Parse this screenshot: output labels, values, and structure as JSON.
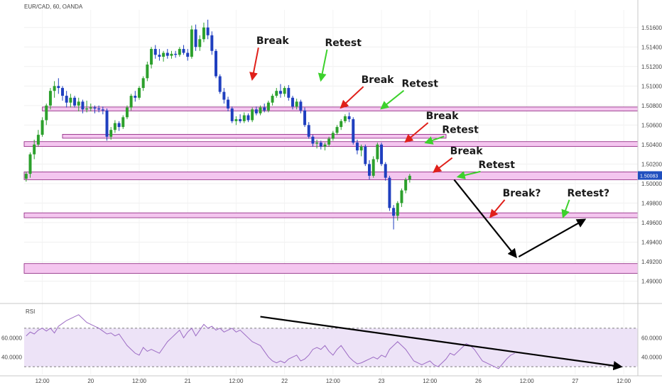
{
  "header": {
    "symbol_text": "EUR/CAD, 60, OANDA"
  },
  "colors": {
    "up": "#2ca02c",
    "down": "#1f3fbf",
    "zone_fill": "#f4c6ef",
    "zone_border": "#8a1f7c",
    "rsi_line": "#9c6bc4",
    "rsi_band": "#ede3f7",
    "current_price_bg": "#1f4fbf",
    "red_arrow": "#e0201a",
    "green_arrow": "#3cd12c",
    "projection": "#000000"
  },
  "chart_data": {
    "type": "candlestick",
    "symbol": "EUR/CAD",
    "timeframe": "60",
    "source": "OANDA",
    "current_price_label": "1.50083",
    "price_axis": {
      "range": [
        1.488,
        1.5178
      ],
      "tick_values": [
        1.49,
        1.492,
        1.494,
        1.496,
        1.498,
        1.5,
        1.502,
        1.504,
        1.506,
        1.508,
        1.51,
        1.512,
        1.514,
        1.516
      ],
      "tick_labels": [
        "1.49000",
        "1.49200",
        "1.49400",
        "1.49600",
        "1.49800",
        "1.50000",
        "1.50200",
        "1.50400",
        "1.50600",
        "1.50800",
        "1.51000",
        "1.51200",
        "1.51400",
        "1.51600"
      ]
    },
    "time_axis": {
      "tick_index": [
        4,
        16,
        28,
        40,
        52,
        64,
        76,
        88,
        100,
        112,
        124,
        136,
        148
      ],
      "labels": [
        "12:00",
        "20",
        "12:00",
        "21",
        "12:00",
        "22",
        "12:00",
        "23",
        "12:00",
        "26",
        "12:00",
        "27",
        "12:00"
      ],
      "total_bars": 152
    },
    "candles": [
      [
        1.5005,
        1.5012,
        1.5002,
        1.501
      ],
      [
        1.501,
        1.5032,
        1.5006,
        1.503
      ],
      [
        1.503,
        1.5045,
        1.5025,
        1.504
      ],
      [
        1.504,
        1.5055,
        1.5038,
        1.505
      ],
      [
        1.505,
        1.5068,
        1.5048,
        1.5065
      ],
      [
        1.5065,
        1.5082,
        1.506,
        1.508
      ],
      [
        1.508,
        1.5098,
        1.5076,
        1.5095
      ],
      [
        1.5095,
        1.5105,
        1.5088,
        1.51
      ],
      [
        1.51,
        1.5108,
        1.5092,
        1.5098
      ],
      [
        1.5098,
        1.51,
        1.5085,
        1.509
      ],
      [
        1.509,
        1.5095,
        1.5078,
        1.5083
      ],
      [
        1.5083,
        1.5092,
        1.5078,
        1.5088
      ],
      [
        1.5088,
        1.509,
        1.5078,
        1.508
      ],
      [
        1.508,
        1.5088,
        1.5074,
        1.5084
      ],
      [
        1.5084,
        1.5086,
        1.5072,
        1.5076
      ],
      [
        1.5076,
        1.5085,
        1.5073,
        1.5077
      ],
      [
        1.5077,
        1.5082,
        1.5074,
        1.5078
      ],
      [
        1.5078,
        1.508,
        1.5072,
        1.5077
      ],
      [
        1.5077,
        1.508,
        1.5073,
        1.5076
      ],
      [
        1.5076,
        1.5079,
        1.5071,
        1.5075
      ],
      [
        1.5075,
        1.5077,
        1.5044,
        1.5048
      ],
      [
        1.5048,
        1.5058,
        1.5045,
        1.5055
      ],
      [
        1.5055,
        1.5065,
        1.5052,
        1.5062
      ],
      [
        1.5062,
        1.5064,
        1.5054,
        1.5058
      ],
      [
        1.5058,
        1.507,
        1.5056,
        1.5068
      ],
      [
        1.5068,
        1.508,
        1.5066,
        1.5078
      ],
      [
        1.5078,
        1.5092,
        1.5075,
        1.509
      ],
      [
        1.509,
        1.5095,
        1.5084,
        1.5088
      ],
      [
        1.5088,
        1.51,
        1.5086,
        1.5098
      ],
      [
        1.5098,
        1.511,
        1.5095,
        1.5108
      ],
      [
        1.5108,
        1.5125,
        1.5105,
        1.5122
      ],
      [
        1.5122,
        1.514,
        1.5118,
        1.5138
      ],
      [
        1.5138,
        1.5142,
        1.5128,
        1.5132
      ],
      [
        1.5132,
        1.5138,
        1.5126,
        1.513
      ],
      [
        1.513,
        1.5136,
        1.5125,
        1.5134
      ],
      [
        1.5134,
        1.5138,
        1.5128,
        1.5131
      ],
      [
        1.5131,
        1.5136,
        1.5128,
        1.5133
      ],
      [
        1.5133,
        1.5136,
        1.5129,
        1.5132
      ],
      [
        1.5132,
        1.514,
        1.513,
        1.5138
      ],
      [
        1.5138,
        1.5142,
        1.5132,
        1.5134
      ],
      [
        1.5134,
        1.5138,
        1.5126,
        1.513
      ],
      [
        1.513,
        1.5162,
        1.5128,
        1.5158
      ],
      [
        1.5158,
        1.5163,
        1.5136,
        1.514
      ],
      [
        1.514,
        1.5152,
        1.5136,
        1.5148
      ],
      [
        1.5148,
        1.5165,
        1.5145,
        1.516
      ],
      [
        1.516,
        1.5168,
        1.5148,
        1.5152
      ],
      [
        1.5152,
        1.5156,
        1.5132,
        1.5136
      ],
      [
        1.5136,
        1.5138,
        1.5108,
        1.511
      ],
      [
        1.511,
        1.5112,
        1.5092,
        1.5094
      ],
      [
        1.5094,
        1.5098,
        1.5082,
        1.5086
      ],
      [
        1.5086,
        1.5089,
        1.5074,
        1.5077
      ],
      [
        1.5077,
        1.5079,
        1.5062,
        1.5064
      ],
      [
        1.5064,
        1.5069,
        1.506,
        1.5066
      ],
      [
        1.5066,
        1.5071,
        1.5062,
        1.5064
      ],
      [
        1.5064,
        1.5073,
        1.5062,
        1.507
      ],
      [
        1.507,
        1.5072,
        1.5063,
        1.5065
      ],
      [
        1.5065,
        1.5078,
        1.5063,
        1.5076
      ],
      [
        1.5076,
        1.5079,
        1.507,
        1.5072
      ],
      [
        1.5072,
        1.508,
        1.507,
        1.5078
      ],
      [
        1.5078,
        1.5082,
        1.5073,
        1.5075
      ],
      [
        1.5075,
        1.5085,
        1.5073,
        1.5083
      ],
      [
        1.5083,
        1.5092,
        1.508,
        1.509
      ],
      [
        1.509,
        1.5098,
        1.5088,
        1.5095
      ],
      [
        1.5095,
        1.5102,
        1.5088,
        1.5092
      ],
      [
        1.5092,
        1.51,
        1.5089,
        1.5098
      ],
      [
        1.5098,
        1.5101,
        1.5085,
        1.5088
      ],
      [
        1.5088,
        1.509,
        1.5076,
        1.5079
      ],
      [
        1.5079,
        1.5087,
        1.5076,
        1.5084
      ],
      [
        1.5084,
        1.5086,
        1.5072,
        1.5075
      ],
      [
        1.5075,
        1.5078,
        1.5058,
        1.506
      ],
      [
        1.506,
        1.5063,
        1.5046,
        1.5048
      ],
      [
        1.5048,
        1.505,
        1.5038,
        1.5041
      ],
      [
        1.5041,
        1.5045,
        1.5036,
        1.5042
      ],
      [
        1.5042,
        1.5044,
        1.5035,
        1.5038
      ],
      [
        1.5038,
        1.5042,
        1.5034,
        1.504
      ],
      [
        1.504,
        1.5048,
        1.5038,
        1.5046
      ],
      [
        1.5046,
        1.5054,
        1.5044,
        1.5052
      ],
      [
        1.5052,
        1.506,
        1.505,
        1.5058
      ],
      [
        1.5058,
        1.5066,
        1.5055,
        1.5064
      ],
      [
        1.5064,
        1.5071,
        1.5062,
        1.5069
      ],
      [
        1.5069,
        1.5073,
        1.5063,
        1.5066
      ],
      [
        1.5066,
        1.5068,
        1.504,
        1.5042
      ],
      [
        1.5042,
        1.5045,
        1.503,
        1.5034
      ],
      [
        1.5034,
        1.504,
        1.5028,
        1.5038
      ],
      [
        1.5038,
        1.504,
        1.5018,
        1.502
      ],
      [
        1.502,
        1.5024,
        1.5004,
        1.5008
      ],
      [
        1.5008,
        1.5028,
        1.5006,
        1.5025
      ],
      [
        1.5025,
        1.5042,
        1.5022,
        1.504
      ],
      [
        1.504,
        1.5042,
        1.5018,
        1.502
      ],
      [
        1.502,
        1.5022,
        1.5003,
        1.5006
      ],
      [
        1.5006,
        1.5008,
        1.4972,
        1.4975
      ],
      [
        1.4975,
        1.4978,
        1.4953,
        1.4967
      ],
      [
        1.4967,
        1.4982,
        1.4962,
        1.498
      ],
      [
        1.498,
        1.4995,
        1.4976,
        1.4993
      ],
      [
        1.4993,
        1.5006,
        1.499,
        1.5004
      ],
      [
        1.5004,
        1.501,
        1.5001,
        1.5008
      ]
    ],
    "zones": [
      {
        "top": 1.50505,
        "bottom": 1.50465,
        "x_start_index": 9,
        "x_end_index": 104
      },
      {
        "top": 1.50785,
        "bottom": 1.50745,
        "x_start_index": 4,
        "x_end_index": "end"
      },
      {
        "top": 1.5043,
        "bottom": 1.5038,
        "x_start_index": 0,
        "x_end_index": "end"
      },
      {
        "top": 1.5012,
        "bottom": 1.5004,
        "x_start_index": 0,
        "x_end_index": "end"
      },
      {
        "top": 1.497,
        "bottom": 1.4965,
        "x_start_index": 0,
        "x_end_index": "end"
      },
      {
        "top": 1.4918,
        "bottom": 1.4908,
        "x_start_index": 0,
        "x_end_index": "end"
      }
    ],
    "annotations": [
      {
        "text": "Break",
        "x_index": 57,
        "price": 1.5143,
        "arrow": "red",
        "arrow_to": [
          56,
          1.5107
        ]
      },
      {
        "text": "Retest",
        "x_index": 74,
        "price": 1.5141,
        "arrow": "green",
        "arrow_to": [
          73,
          1.5106
        ]
      },
      {
        "text": "Break",
        "x_index": 83,
        "price": 1.5103,
        "arrow": "red",
        "arrow_to": [
          78,
          1.5078
        ]
      },
      {
        "text": "Retest",
        "x_index": 93,
        "price": 1.5099,
        "arrow": "green",
        "arrow_to": [
          88,
          1.5077
        ]
      },
      {
        "text": "Break",
        "x_index": 99,
        "price": 1.5066,
        "arrow": "red",
        "arrow_to": [
          94,
          1.5043
        ]
      },
      {
        "text": "Retest",
        "x_index": 103,
        "price": 1.5052,
        "arrow": "green",
        "arrow_to": [
          99,
          1.5042
        ]
      },
      {
        "text": "Break",
        "x_index": 105,
        "price": 1.503,
        "arrow": "red",
        "arrow_to": [
          101,
          1.5012
        ]
      },
      {
        "text": "Retest",
        "x_index": 112,
        "price": 1.5016,
        "arrow": "green",
        "arrow_to": [
          107,
          1.5007
        ]
      },
      {
        "text": "Break?",
        "x_index": 118,
        "price": 1.4987,
        "arrow": "red",
        "arrow_to": [
          115,
          1.4966
        ]
      },
      {
        "text": "Retest?",
        "x_index": 134,
        "price": 1.4987,
        "arrow": "green",
        "arrow_to": [
          133,
          1.4966
        ]
      }
    ],
    "projection": [
      [
        106,
        1.5004
      ],
      [
        122,
        1.4925
      ],
      [
        139,
        1.4963
      ]
    ],
    "rsi": {
      "label": "RSI",
      "range": [
        22,
        92
      ],
      "levels": [
        70,
        30
      ],
      "tick_values": [
        60,
        40
      ],
      "tick_labels": [
        "60.0000",
        "40.0000"
      ],
      "values": [
        62,
        66,
        64,
        68,
        70,
        67,
        70,
        65,
        72,
        75,
        78,
        80,
        82,
        84,
        80,
        76,
        74,
        72,
        70,
        67,
        64,
        65,
        62,
        64,
        58,
        52,
        48,
        44,
        42,
        50,
        46,
        48,
        46,
        44,
        50,
        56,
        60,
        64,
        68,
        60,
        66,
        70,
        62,
        68,
        74,
        70,
        72,
        68,
        70,
        66,
        68,
        70,
        66,
        68,
        64,
        60,
        56,
        54,
        52,
        46,
        40,
        36,
        34,
        36,
        34,
        38,
        40,
        42,
        36,
        38,
        42,
        48,
        50,
        48,
        52,
        46,
        42,
        48,
        52,
        46,
        40,
        36,
        33,
        34,
        36,
        38,
        40,
        38,
        42,
        40,
        48,
        52,
        56,
        52,
        48,
        42,
        36,
        34,
        32,
        34,
        36,
        32,
        30,
        34,
        38,
        44,
        42,
        46,
        50,
        54,
        52,
        48,
        42,
        36,
        34,
        32,
        30,
        28,
        33,
        38,
        42,
        44
      ],
      "trendline": [
        [
          58,
          82
        ],
        [
          148,
          30
        ]
      ]
    }
  }
}
